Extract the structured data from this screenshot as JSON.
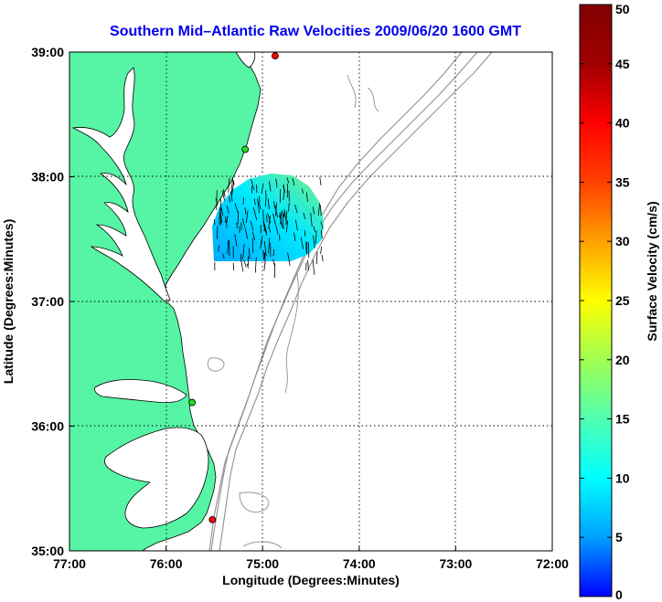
{
  "title": "Southern Mid–Atlantic Raw Velocities 2009/06/20 1600 GMT",
  "x_axis": {
    "label": "Longitude (Degrees:Minutes)",
    "ticks": [
      "77:00",
      "76:00",
      "75:00",
      "74:00",
      "73:00",
      "72:00"
    ]
  },
  "y_axis": {
    "label": "Latitude (Degrees:Minutes)",
    "ticks": [
      "39:00",
      "38:00",
      "37:00",
      "36:00",
      "35:00"
    ]
  },
  "colorbar": {
    "label": "Surface Velocity (cm/s)",
    "ticks": [
      "50",
      "45",
      "40",
      "35",
      "30",
      "25",
      "20",
      "15",
      "10",
      "5",
      "0"
    ],
    "min": 0,
    "max": 50,
    "colors": [
      "#0000ff",
      "#00a0ff",
      "#00ffff",
      "#50ffb0",
      "#a0ff50",
      "#ffff00",
      "#ffa000",
      "#ff4000",
      "#ff0000",
      "#a00000",
      "#800000"
    ]
  },
  "map": {
    "lon_range": [
      -77,
      -72
    ],
    "lat_range": [
      35,
      39
    ],
    "land_color": "#55f5a5",
    "water_color": "#ffffff",
    "bathymetry_color": "#909090",
    "grid": true,
    "stations": [
      {
        "lon": -74.87,
        "lat": 38.97,
        "color": "#ff0000"
      },
      {
        "lon": -75.18,
        "lat": 38.22,
        "color": "#22dd22"
      },
      {
        "lon": -75.73,
        "lat": 36.19,
        "color": "#22dd22"
      },
      {
        "lon": -75.52,
        "lat": 35.25,
        "color": "#ff0000"
      }
    ],
    "velocity_field": {
      "region_lon": [
        -75.5,
        -74.35
      ],
      "region_lat": [
        37.3,
        38.0
      ],
      "speed_range_cm_s": [
        5,
        20
      ],
      "vector_color": "#000000"
    }
  }
}
